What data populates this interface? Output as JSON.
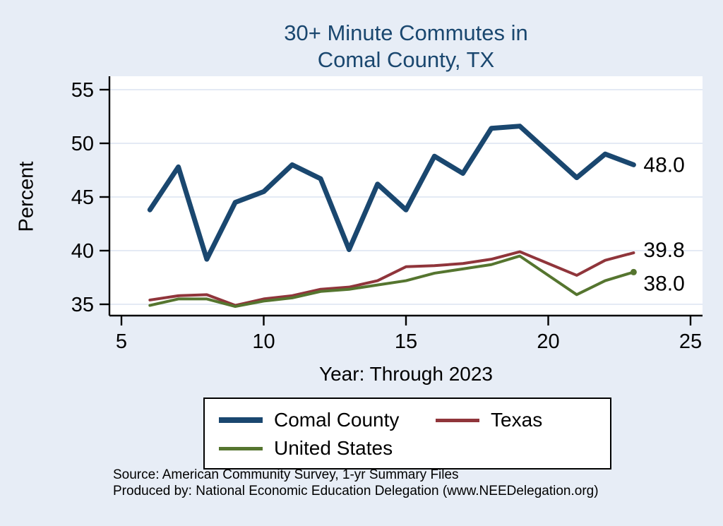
{
  "chart_data": {
    "type": "line",
    "title": "30+ Minute Commutes in Comal County, TX",
    "title_line1": "30+ Minute Commutes in",
    "title_line2": "Comal County, TX",
    "ylabel": "Percent",
    "xlabel": "Year: Through 2023",
    "x_ticks": [
      5,
      10,
      15,
      20,
      25
    ],
    "y_ticks": [
      35,
      40,
      45,
      50,
      55
    ],
    "xlim": [
      4.6,
      25.4
    ],
    "ylim": [
      34,
      56
    ],
    "grid": "horizontal",
    "grid_color": "#dbe4f0",
    "background_color": "#e7edf6",
    "plot_background": "#ffffff",
    "legend_position": "bottom",
    "title_color": "#1a476f",
    "series": [
      {
        "name": "Comal County",
        "color": "#1a476f",
        "stroke_width": 7,
        "end_label": "48.0",
        "label_dy": 10,
        "end_marker": false,
        "x": [
          6,
          7,
          8,
          9,
          10,
          11,
          12,
          13,
          14,
          15,
          16,
          17,
          18,
          19,
          21,
          22,
          23
        ],
        "y": [
          43.8,
          47.8,
          39.2,
          44.5,
          45.5,
          48.0,
          46.7,
          40.1,
          46.2,
          43.8,
          48.8,
          47.2,
          51.4,
          51.6,
          46.8,
          49.0,
          48.0
        ]
      },
      {
        "name": "Texas",
        "color": "#90353b",
        "stroke_width": 4,
        "end_label": "39.8",
        "label_dy": 6,
        "end_marker": false,
        "x": [
          6,
          7,
          8,
          9,
          10,
          11,
          12,
          13,
          14,
          15,
          16,
          17,
          18,
          19,
          21,
          22,
          23
        ],
        "y": [
          35.4,
          35.8,
          35.9,
          34.9,
          35.5,
          35.8,
          36.4,
          36.6,
          37.2,
          38.5,
          38.6,
          38.8,
          39.2,
          39.9,
          37.7,
          39.1,
          39.8
        ]
      },
      {
        "name": "United States",
        "color": "#55752f",
        "stroke_width": 4,
        "end_label": "38.0",
        "label_dy": 26,
        "end_marker": true,
        "x": [
          6,
          7,
          8,
          9,
          10,
          11,
          12,
          13,
          14,
          15,
          16,
          17,
          18,
          19,
          21,
          22,
          23
        ],
        "y": [
          34.9,
          35.5,
          35.5,
          34.8,
          35.3,
          35.6,
          36.2,
          36.4,
          36.8,
          37.2,
          37.9,
          38.3,
          38.7,
          39.5,
          35.9,
          37.2,
          38.0
        ]
      }
    ]
  },
  "notes": {
    "source": "Source: American Community Survey, 1-yr Summary Files",
    "produced_by": "Produced by: National Economic Education Delegation (www.NEEDelegation.org)"
  }
}
